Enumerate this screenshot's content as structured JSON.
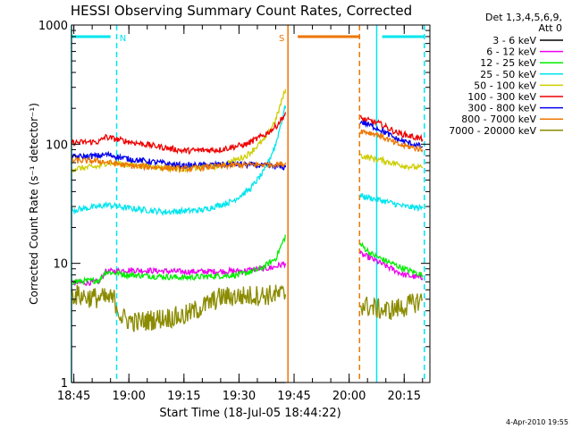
{
  "chart_data": {
    "type": "line",
    "title": "HESSI Observing Summary Count Rates, Corrected",
    "xlabel": "Start Time (18-Jul-05 18:44:22)",
    "ylabel": "Corrected Count Rate (s⁻¹ detector⁻¹)",
    "footer": "4-Apr-2010 19:55",
    "y_scale": "log",
    "ylim": [
      1,
      1000
    ],
    "y_ticks": [
      {
        "value": 1,
        "label": "1"
      },
      {
        "value": 10,
        "label": "10"
      },
      {
        "value": 100,
        "label": "100"
      },
      {
        "value": 1000,
        "label": "1000"
      }
    ],
    "xlim": [
      "18:44:22",
      "20:22:00"
    ],
    "x_ticks": [
      "18:45",
      "19:00",
      "19:15",
      "19:30",
      "19:45",
      "20:00",
      "20:15"
    ],
    "legend_header": [
      "Det 1,3,4,5,6,9,",
      "Att 0"
    ],
    "legend_position": "top-right outside",
    "grid": false,
    "flags": [
      {
        "label": "N",
        "color": "#00e5ee",
        "bar": [
          "18:44:22",
          "18:55:00"
        ],
        "start": "18:44:22",
        "end": "18:56:40",
        "end_style": "dashed"
      },
      {
        "label": "S",
        "color": "#ee7600",
        "bar": [
          "19:46:00",
          "20:03:00"
        ],
        "start": "19:43:20",
        "end": "20:02:50",
        "end_style": "dashed"
      },
      {
        "label": "",
        "color": "#00e5ee",
        "bar": [
          "20:09:00",
          "20:20:30"
        ],
        "start": "20:07:30",
        "end": "20:20:30",
        "end_style": "dashed"
      }
    ],
    "data_gap": [
      "19:43:00",
      "20:02:30"
    ],
    "series": [
      {
        "name": "3 - 6 keV",
        "color": "#000000",
        "points": [
          [
            "18:44:30",
            1
          ],
          [
            "19:42:40",
            1
          ]
        ]
      },
      {
        "name": "6 - 12 keV",
        "color": "#ee00ee",
        "points": [
          [
            "18:44:30",
            6.8
          ],
          [
            "18:52:00",
            7.0
          ],
          [
            "18:53:30",
            8.5
          ],
          [
            "19:00:00",
            8.8
          ],
          [
            "19:15:00",
            8.5
          ],
          [
            "19:30:00",
            8.6
          ],
          [
            "19:39:00",
            9.2
          ],
          [
            "19:42:40",
            10.0
          ],
          [
            "20:03:00",
            12.0
          ],
          [
            "20:06:00",
            11.0
          ],
          [
            "20:10:00",
            9.5
          ],
          [
            "20:15:00",
            8.0
          ],
          [
            "20:20:00",
            7.5
          ]
        ]
      },
      {
        "name": "12 - 25 keV",
        "color": "#00ee00",
        "points": [
          [
            "18:44:30",
            7.0
          ],
          [
            "18:52:00",
            7.2
          ],
          [
            "18:53:30",
            8.5
          ],
          [
            "19:00:00",
            8.0
          ],
          [
            "19:15:00",
            7.6
          ],
          [
            "19:30:00",
            8.0
          ],
          [
            "19:36:00",
            9.0
          ],
          [
            "19:40:00",
            11.0
          ],
          [
            "19:42:40",
            17.0
          ],
          [
            "20:03:00",
            14.5
          ],
          [
            "20:06:00",
            12.0
          ],
          [
            "20:10:00",
            10.5
          ],
          [
            "20:15:00",
            9.0
          ],
          [
            "20:20:00",
            8.0
          ]
        ]
      },
      {
        "name": "25 - 50 keV",
        "color": "#00e5ee",
        "points": [
          [
            "18:44:30",
            28.0
          ],
          [
            "18:52:00",
            30.0
          ],
          [
            "18:54:00",
            31.0
          ],
          [
            "19:00:00",
            29.0
          ],
          [
            "19:10:00",
            27.0
          ],
          [
            "19:20:00",
            28.0
          ],
          [
            "19:28:00",
            33.0
          ],
          [
            "19:33:00",
            42.0
          ],
          [
            "19:37:00",
            60.0
          ],
          [
            "19:40:00",
            100.0
          ],
          [
            "19:42:40",
            210.0
          ],
          [
            "20:03:00",
            37.0
          ],
          [
            "20:10:00",
            33.0
          ],
          [
            "20:15:00",
            30.0
          ],
          [
            "20:20:00",
            29.0
          ]
        ]
      },
      {
        "name": "50 - 100 keV",
        "color": "#cdcd00",
        "points": [
          [
            "18:44:30",
            62.0
          ],
          [
            "18:52:00",
            65.0
          ],
          [
            "18:54:00",
            70.0
          ],
          [
            "19:00:00",
            67.0
          ],
          [
            "19:15:00",
            62.0
          ],
          [
            "19:25:00",
            66.0
          ],
          [
            "19:32:00",
            80.0
          ],
          [
            "19:37:00",
            110.0
          ],
          [
            "19:40:00",
            160.0
          ],
          [
            "19:42:40",
            290.0
          ],
          [
            "20:03:00",
            80.0
          ],
          [
            "20:10:00",
            72.0
          ],
          [
            "20:15:00",
            66.0
          ],
          [
            "20:20:00",
            63.0
          ]
        ]
      },
      {
        "name": "100 - 300 keV",
        "color": "#ee0000",
        "points": [
          [
            "18:44:30",
            103.0
          ],
          [
            "18:52:00",
            105.0
          ],
          [
            "18:53:30",
            115.0
          ],
          [
            "19:00:00",
            105.0
          ],
          [
            "19:15:00",
            88.0
          ],
          [
            "19:25:00",
            90.0
          ],
          [
            "19:32:00",
            100.0
          ],
          [
            "19:37:00",
            120.0
          ],
          [
            "19:40:00",
            140.0
          ],
          [
            "19:42:40",
            180.0
          ],
          [
            "20:03:00",
            165.0
          ],
          [
            "20:08:00",
            150.0
          ],
          [
            "20:13:00",
            125.0
          ],
          [
            "20:20:00",
            110.0
          ]
        ]
      },
      {
        "name": "300 - 800 keV",
        "color": "#0000ee",
        "points": [
          [
            "18:44:30",
            78.0
          ],
          [
            "18:52:00",
            80.0
          ],
          [
            "18:54:00",
            82.0
          ],
          [
            "19:00:00",
            75.0
          ],
          [
            "19:15:00",
            66.0
          ],
          [
            "19:30:00",
            68.0
          ],
          [
            "19:42:40",
            64.0
          ],
          [
            "20:03:00",
            155.0
          ],
          [
            "20:08:00",
            135.0
          ],
          [
            "20:13:00",
            110.0
          ],
          [
            "20:20:00",
            95.0
          ]
        ]
      },
      {
        "name": "800 - 7000 keV",
        "color": "#ee7600",
        "points": [
          [
            "18:44:30",
            73.0
          ],
          [
            "18:52:00",
            72.0
          ],
          [
            "19:00:00",
            66.0
          ],
          [
            "19:15:00",
            62.0
          ],
          [
            "19:30:00",
            67.0
          ],
          [
            "19:42:40",
            68.0
          ],
          [
            "20:03:00",
            130.0
          ],
          [
            "20:08:00",
            120.0
          ],
          [
            "20:13:00",
            100.0
          ],
          [
            "20:20:00",
            90.0
          ]
        ]
      },
      {
        "name": "7000 - 20000 keV",
        "color": "#8b8b00",
        "points": [
          [
            "18:44:30",
            5.5
          ],
          [
            "18:49:00",
            5.2
          ],
          [
            "18:56:00",
            5.0
          ],
          [
            "18:58:00",
            3.5
          ],
          [
            "19:02:00",
            3.2
          ],
          [
            "19:10:00",
            3.5
          ],
          [
            "19:15:00",
            3.6
          ],
          [
            "19:25:00",
            5.2
          ],
          [
            "19:30:00",
            5.3
          ],
          [
            "19:42:40",
            5.5
          ],
          [
            "20:03:00",
            4.5
          ],
          [
            "20:10:00",
            4.0
          ],
          [
            "20:15:00",
            4.3
          ],
          [
            "20:20:00",
            5.0
          ]
        ]
      }
    ]
  }
}
